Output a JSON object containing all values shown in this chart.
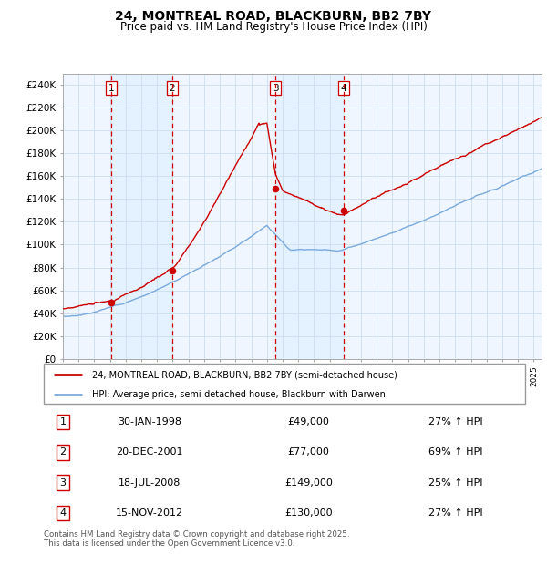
{
  "title1": "24, MONTREAL ROAD, BLACKBURN, BB2 7BY",
  "title2": "Price paid vs. HM Land Registry's House Price Index (HPI)",
  "bg_color": "#ffffff",
  "plot_bg_color": "#ffffff",
  "grid_color": "#ccddee",
  "hpi_color": "#7aaadd",
  "price_color": "#cc0000",
  "shade_color": "#ddeeff",
  "transactions": [
    {
      "num": 1,
      "date_x": 1998.08,
      "price": 49000
    },
    {
      "num": 2,
      "date_x": 2001.97,
      "price": 77000
    },
    {
      "num": 3,
      "date_x": 2008.55,
      "price": 149000
    },
    {
      "num": 4,
      "date_x": 2012.88,
      "price": 130000
    }
  ],
  "ylim": [
    0,
    250000
  ],
  "xlim": [
    1995.0,
    2025.5
  ],
  "yticks": [
    0,
    20000,
    40000,
    60000,
    80000,
    100000,
    120000,
    140000,
    160000,
    180000,
    200000,
    220000,
    240000
  ],
  "ytick_labels": [
    "£0",
    "£20K",
    "£40K",
    "£60K",
    "£80K",
    "£100K",
    "£120K",
    "£140K",
    "£160K",
    "£180K",
    "£200K",
    "£220K",
    "£240K"
  ],
  "legend_label_red": "24, MONTREAL ROAD, BLACKBURN, BB2 7BY (semi-detached house)",
  "legend_label_blue": "HPI: Average price, semi-detached house, Blackburn with Darwen",
  "footer": "Contains HM Land Registry data © Crown copyright and database right 2025.\nThis data is licensed under the Open Government Licence v3.0.",
  "table_rows": [
    [
      "1",
      "30-JAN-1998",
      "£49,000",
      "27% ↑ HPI"
    ],
    [
      "2",
      "20-DEC-2001",
      "£77,000",
      "69% ↑ HPI"
    ],
    [
      "3",
      "18-JUL-2008",
      "£149,000",
      "25% ↑ HPI"
    ],
    [
      "4",
      "15-NOV-2012",
      "£130,000",
      "27% ↑ HPI"
    ]
  ]
}
